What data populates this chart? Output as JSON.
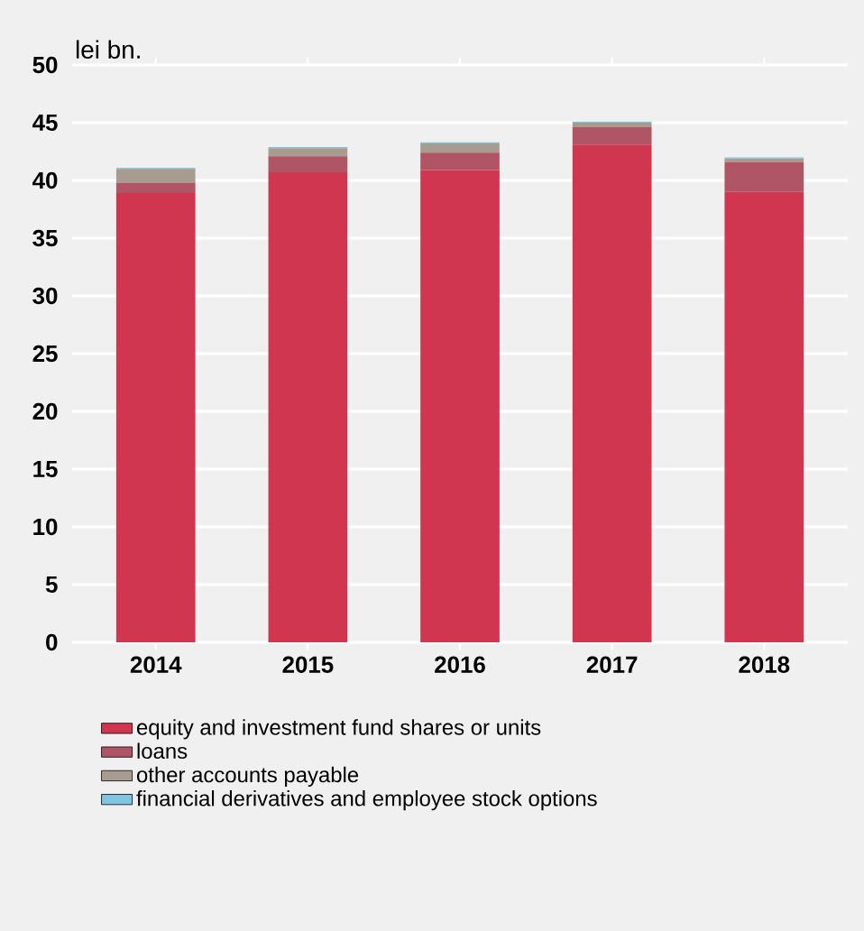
{
  "chart_data": {
    "type": "bar",
    "stacked": true,
    "ylabel": "lei bn.",
    "categories": [
      "2014",
      "2015",
      "2016",
      "2017",
      "2018"
    ],
    "series": [
      {
        "name": "equity and investment fund shares or units",
        "color": "#d0364f",
        "values": [
          38.9,
          40.7,
          40.9,
          43.1,
          39.0
        ]
      },
      {
        "name": "loans",
        "color": "#b05565",
        "values": [
          0.9,
          1.4,
          1.5,
          1.5,
          2.6
        ]
      },
      {
        "name": "other accounts payable",
        "color": "#a89c90",
        "values": [
          1.2,
          0.7,
          0.8,
          0.4,
          0.3
        ]
      },
      {
        "name": "financial derivatives and employee stock options",
        "color": "#7fc4e0",
        "values": [
          0.1,
          0.1,
          0.1,
          0.1,
          0.1
        ]
      }
    ],
    "ylim": [
      0,
      50
    ],
    "yticks": [
      0,
      5,
      10,
      15,
      20,
      25,
      30,
      35,
      40,
      45,
      50
    ],
    "grid": "y",
    "legend": "bottom"
  }
}
